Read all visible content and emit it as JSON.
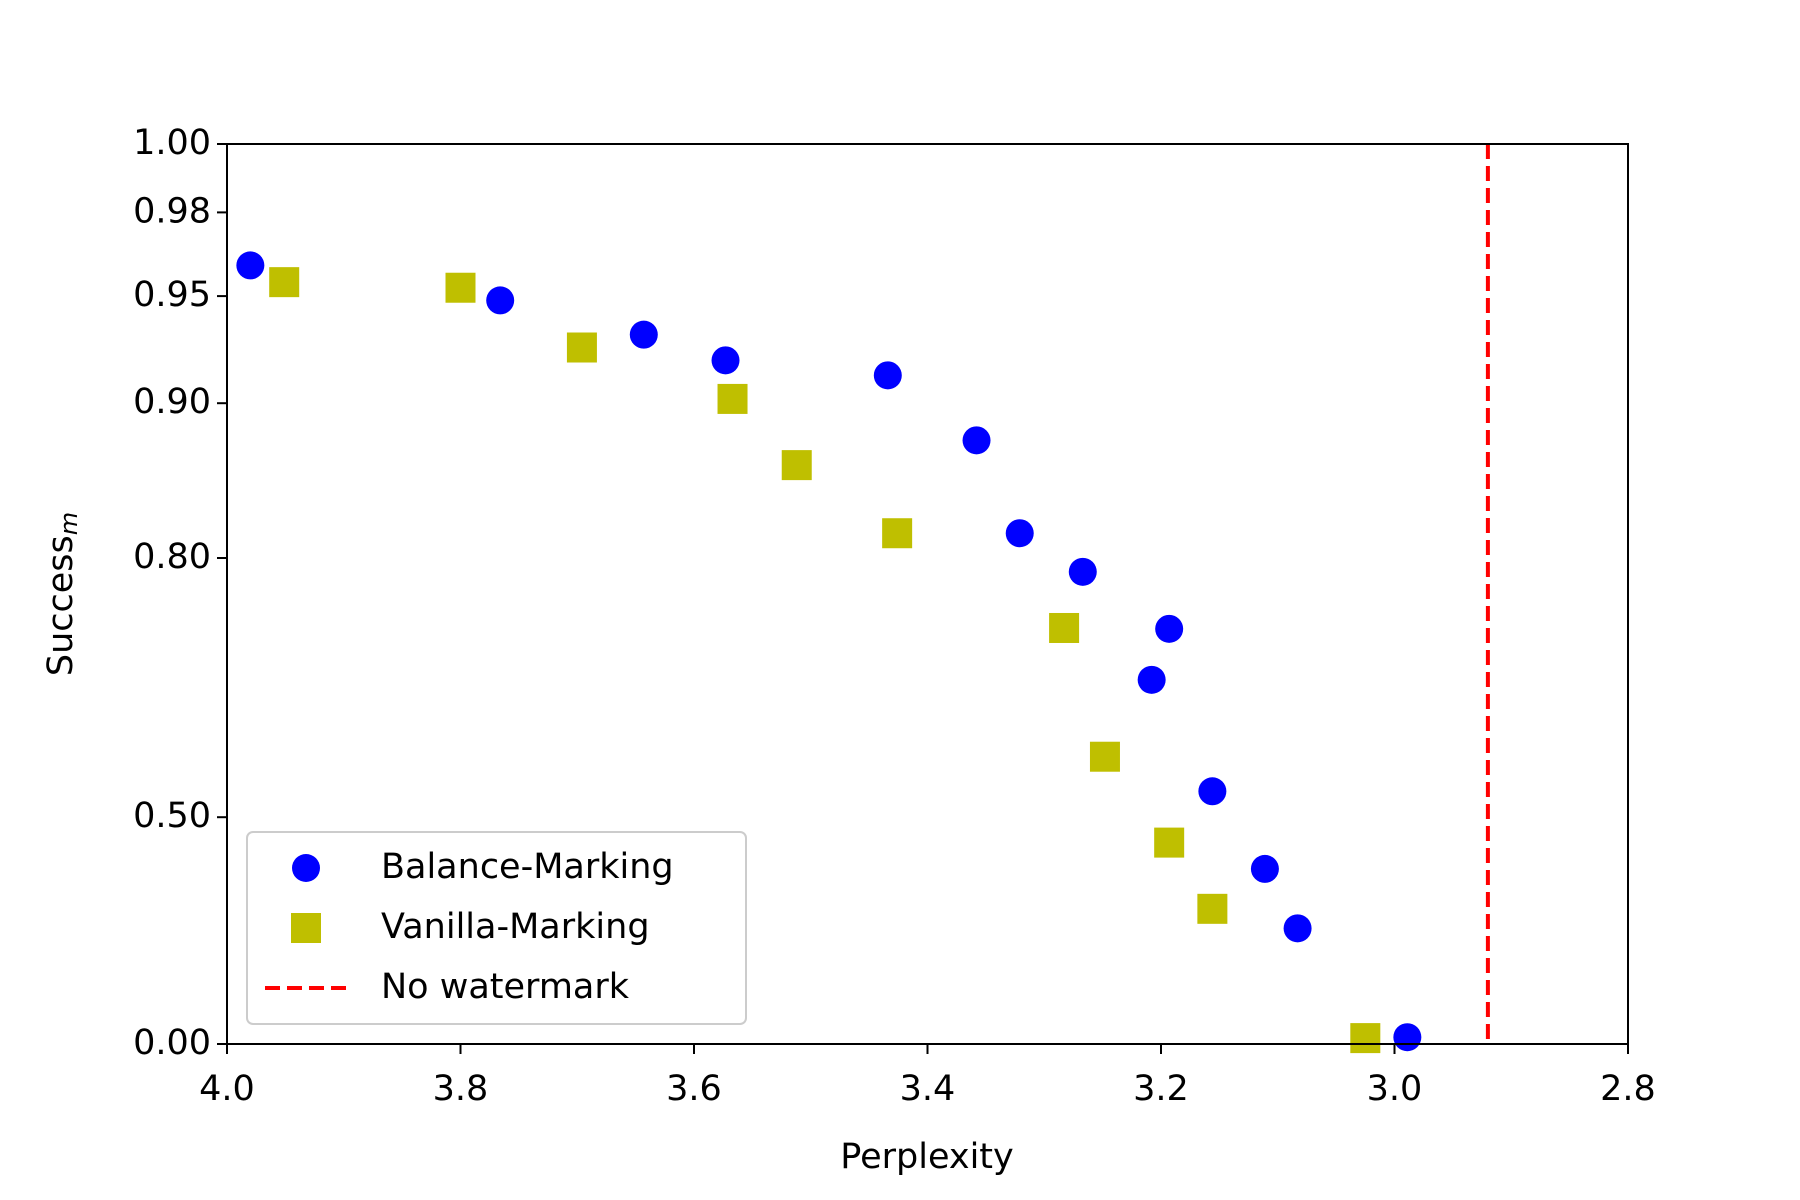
{
  "chart_data": {
    "type": "scatter",
    "xlabel": "Perplexity",
    "ylabel": "Success",
    "ylabel_subscript": "m",
    "xlim": [
      4.0,
      2.8
    ],
    "xticks": [
      {
        "value": 4.0,
        "label": "4.0"
      },
      {
        "value": 3.8,
        "label": "3.8"
      },
      {
        "value": 3.6,
        "label": "3.6"
      },
      {
        "value": 3.4,
        "label": "3.4"
      },
      {
        "value": 3.2,
        "label": "3.2"
      },
      {
        "value": 3.0,
        "label": "3.0"
      },
      {
        "value": 2.8,
        "label": "2.8"
      }
    ],
    "ylim": [
      0,
      1
    ],
    "yticks": [
      {
        "value": 0,
        "label": "0.00"
      },
      {
        "value": 0.5,
        "label": "0.50"
      },
      {
        "value": 0.8,
        "label": "0.80"
      },
      {
        "value": 0.9,
        "label": "0.90"
      },
      {
        "value": 0.95,
        "label": "0.95"
      },
      {
        "value": 0.98,
        "label": "0.98"
      },
      {
        "value": 1,
        "label": "1.00"
      }
    ],
    "legend": "lower left",
    "series": [
      {
        "name": "Balance-Marking",
        "color": "#0000ff",
        "marker": "circle",
        "x": [
          3.98,
          3.766,
          3.643,
          3.573,
          3.434,
          3.358,
          3.321,
          3.267,
          3.193,
          3.208,
          3.156,
          3.111,
          3.083,
          2.989
        ],
        "values": [
          0.961,
          0.948,
          0.932,
          0.92,
          0.913,
          0.876,
          0.816,
          0.784,
          0.718,
          0.659,
          0.53,
          0.386,
          0.255,
          0.015
        ]
      },
      {
        "name": "Vanilla-Marking",
        "color": "#bfbf00",
        "marker": "square",
        "x": [
          3.951,
          3.8,
          3.696,
          3.567,
          3.512,
          3.426,
          3.283,
          3.248,
          3.193,
          3.156,
          3.025
        ],
        "values": [
          0.955,
          0.953,
          0.926,
          0.902,
          0.86,
          0.816,
          0.719,
          0.57,
          0.444,
          0.298,
          0.013
        ]
      }
    ],
    "vlines": [
      {
        "name": "No watermark",
        "x": 2.92,
        "color": "#ff0000",
        "style": "dashed"
      }
    ]
  }
}
